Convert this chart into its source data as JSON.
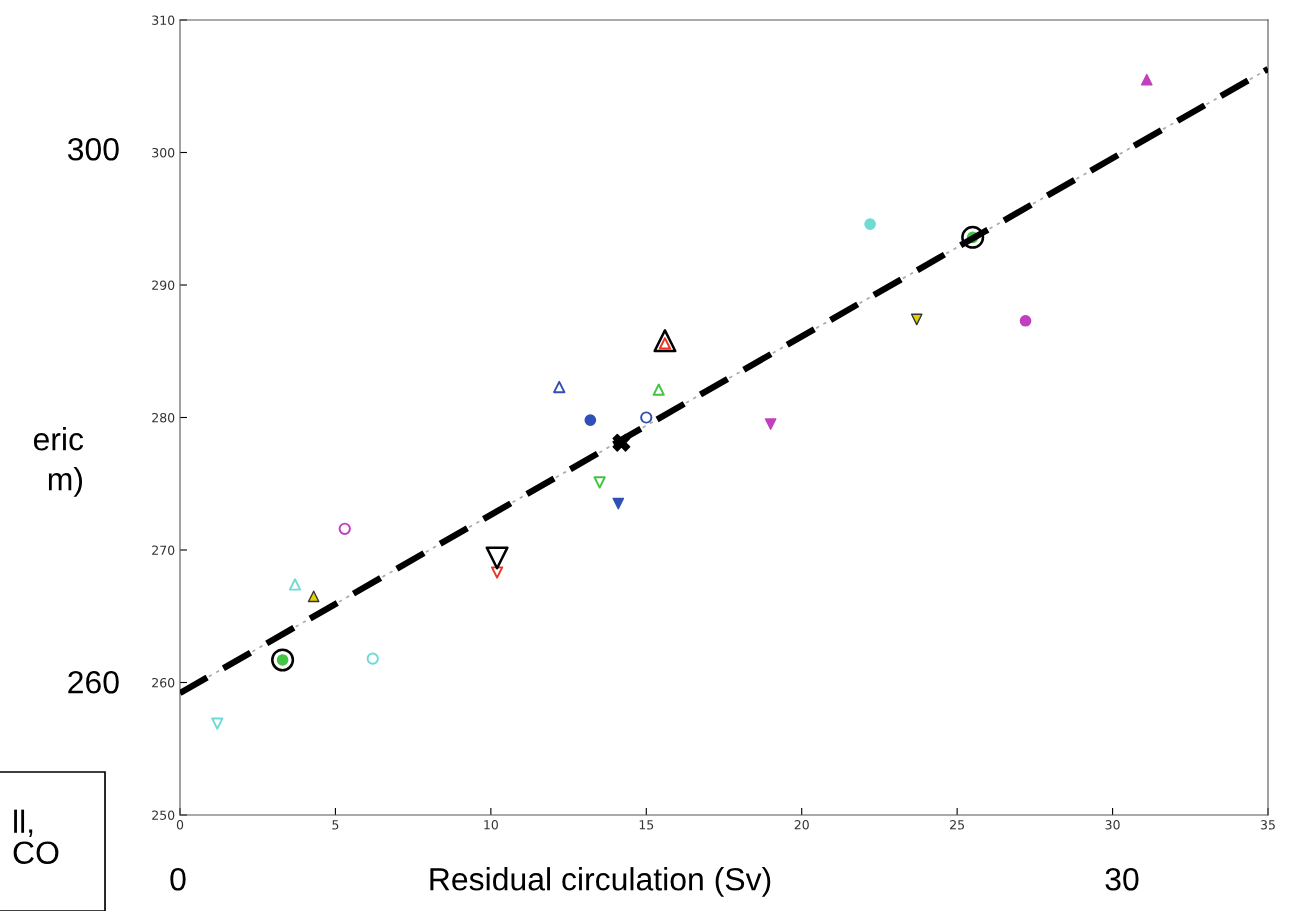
{
  "chart_data": {
    "type": "scatter",
    "xlabel": "Residual circulation (Sv)",
    "xlim": [
      0,
      35
    ],
    "xticks": [
      0,
      5,
      10,
      15,
      20,
      25,
      30,
      35
    ],
    "ylim": [
      250,
      310
    ],
    "yticks": [
      250,
      260,
      270,
      280,
      290,
      300,
      310
    ],
    "grid": false,
    "annotations": [
      "300",
      "260",
      "0",
      "30",
      "eric",
      "m)",
      "ll,\nCO"
    ],
    "series": [
      {
        "type": "line",
        "x": [
          0,
          35
        ],
        "values": [
          259.2,
          306.3
        ],
        "color": "#aaaaaa",
        "line_style": "dotted",
        "marker": "none"
      },
      {
        "type": "line",
        "x": [
          0,
          35
        ],
        "values": [
          259.2,
          306.3
        ],
        "color": "#000000",
        "line_style": "dashed",
        "marker": "none"
      },
      {
        "x": [
          1.2
        ],
        "values": [
          256.9
        ],
        "color": "#70dbd3",
        "marker": "triangle_down"
      },
      {
        "x": [
          3.7
        ],
        "values": [
          267.4
        ],
        "color": "#70dbd3",
        "marker": "triangle"
      },
      {
        "x": [
          6.2
        ],
        "values": [
          261.8
        ],
        "color": "#70dbd3",
        "marker": "circle"
      },
      {
        "x": [
          22.2
        ],
        "values": [
          294.6
        ],
        "color": "#70dbd3",
        "marker": "circle"
      },
      {
        "x": [
          5.3
        ],
        "values": [
          271.6
        ],
        "color": "#c040c0",
        "marker": "circle"
      },
      {
        "x": [
          19.0
        ],
        "values": [
          279.5
        ],
        "color": "#c040c0",
        "marker": "triangle_down"
      },
      {
        "x": [
          27.2
        ],
        "values": [
          287.3
        ],
        "color": "#c040c0",
        "marker": "circle"
      },
      {
        "x": [
          31.1
        ],
        "values": [
          305.5
        ],
        "color": "#c040c0",
        "marker": "triangle"
      },
      {
        "x": [
          12.2
        ],
        "values": [
          282.3
        ],
        "color": "#3050b8",
        "marker": "triangle"
      },
      {
        "x": [
          13.2
        ],
        "values": [
          279.8
        ],
        "color": "#3050b8",
        "marker": "circle"
      },
      {
        "x": [
          14.1
        ],
        "values": [
          273.5
        ],
        "color": "#3050b8",
        "marker": "triangle_down"
      },
      {
        "x": [
          15.0
        ],
        "values": [
          280.0
        ],
        "color": "#3050b8",
        "marker": "circle"
      },
      {
        "x": [
          13.5
        ],
        "values": [
          275.1
        ],
        "color": "#44c444",
        "marker": "triangle_down"
      },
      {
        "x": [
          15.4
        ],
        "values": [
          282.1
        ],
        "color": "#44c444",
        "marker": "triangle"
      },
      {
        "x": [
          4.3
        ],
        "values": [
          266.5
        ],
        "color": "#e0d000",
        "marker": "triangle"
      },
      {
        "x": [
          23.7
        ],
        "values": [
          287.4
        ],
        "color": "#e0d000",
        "marker": "triangle_down"
      },
      {
        "x": [
          10.2
        ],
        "values": [
          268.3
        ],
        "color": "#ee3322",
        "marker": "triangle_down"
      },
      {
        "x": [
          15.6
        ],
        "values": [
          285.6
        ],
        "color": "#ee3322",
        "marker": "triangle"
      },
      {
        "x": [
          3.3,
          25.5
        ],
        "values": [
          261.7,
          293.6
        ],
        "color": "#44c444",
        "marker": "circle"
      },
      {
        "x": [
          3.3,
          25.5
        ],
        "values": [
          261.7,
          293.6
        ],
        "color": "#000000",
        "marker": "circle"
      },
      {
        "x": [
          10.2
        ],
        "values": [
          269.4
        ],
        "color": "#000000",
        "marker": "triangle_down"
      },
      {
        "x": [
          15.6
        ],
        "values": [
          285.8
        ],
        "color": "#000000",
        "marker": "triangle"
      },
      {
        "x": [
          14.2
        ],
        "values": [
          278.1
        ],
        "color": "#000000",
        "marker": "cross"
      }
    ]
  }
}
